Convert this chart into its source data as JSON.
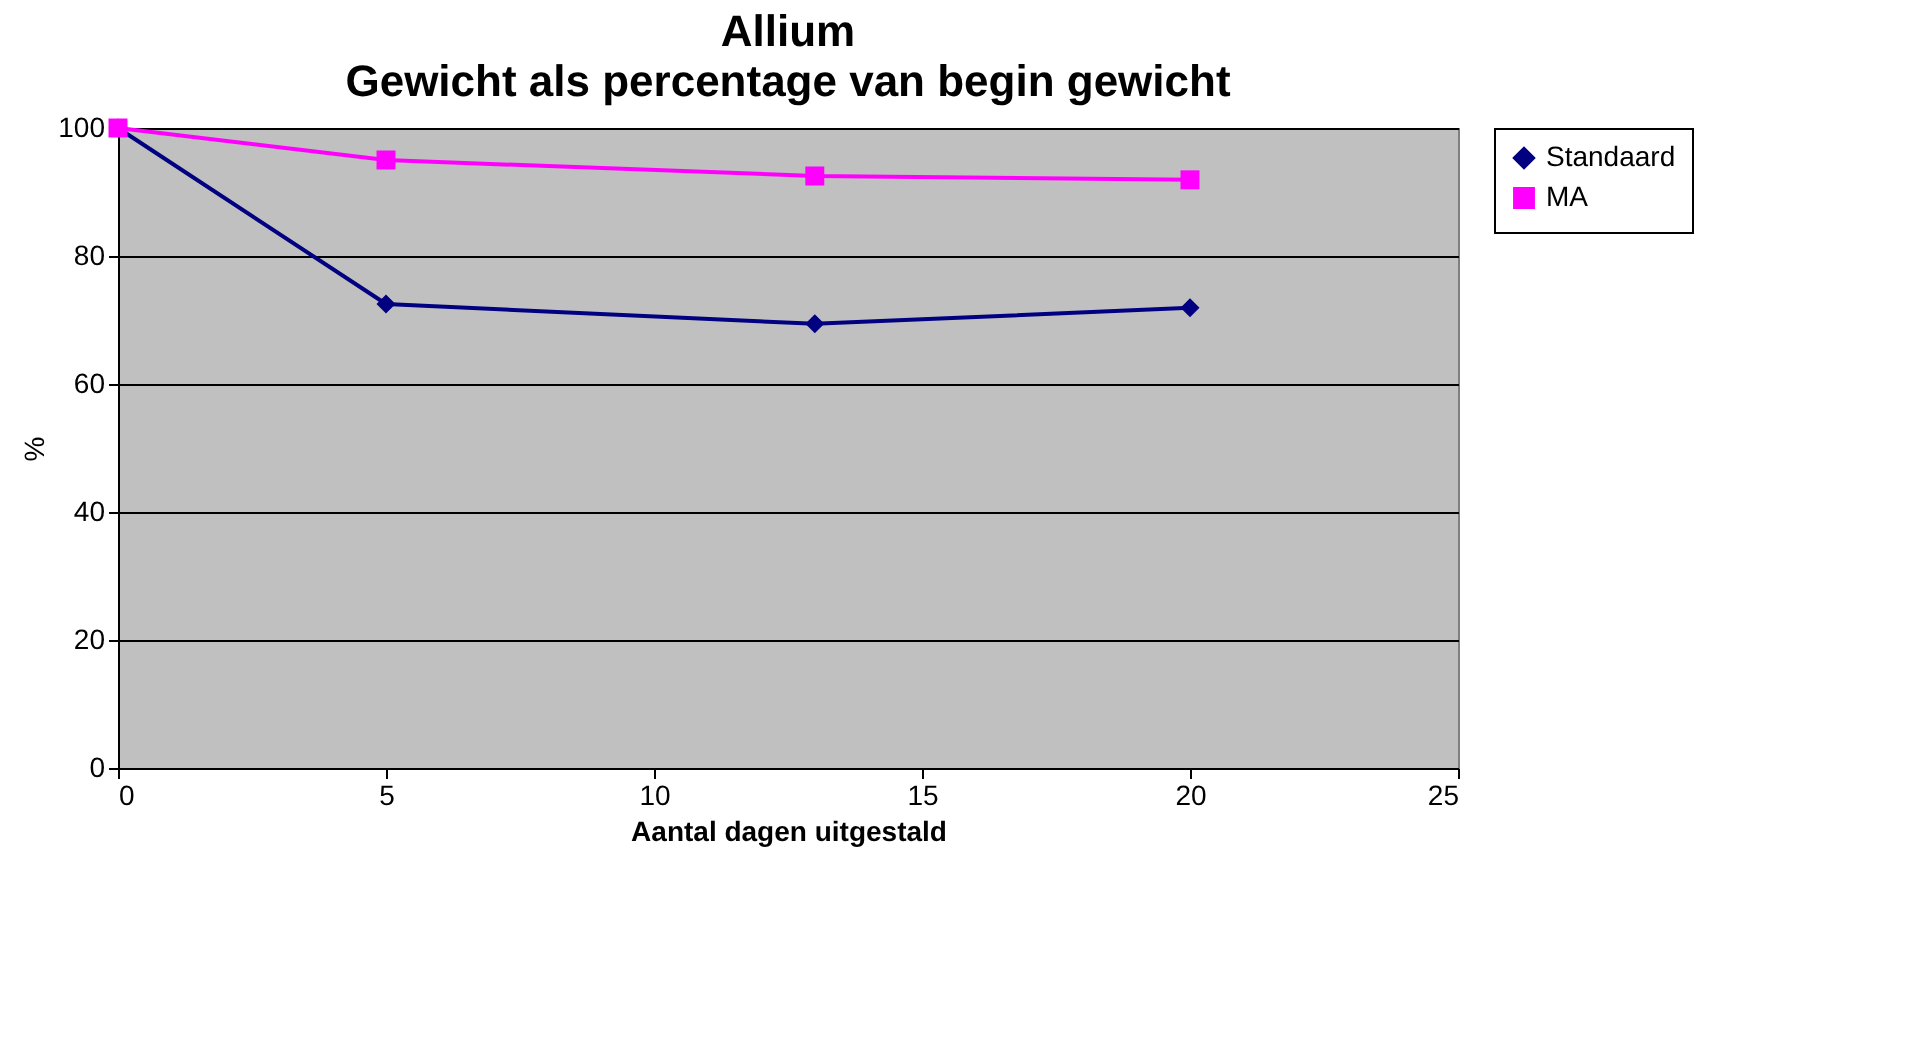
{
  "chart_data": {
    "type": "line",
    "title": "Allium",
    "subtitle": "Gewicht als percentage van begin gewicht",
    "xlabel": "Aantal dagen uitgestald",
    "ylabel": "%",
    "x": [
      0,
      5,
      13,
      20
    ],
    "series": [
      {
        "name": "Standaard",
        "color": "#000080",
        "values": [
          100,
          72.5,
          69.4,
          71.9
        ],
        "marker": "diamond"
      },
      {
        "name": "MA",
        "color": "#ff00ff",
        "values": [
          100,
          95,
          92.5,
          91.9
        ],
        "marker": "square"
      }
    ],
    "xlim": [
      0,
      25
    ],
    "xticks": [
      0,
      5,
      10,
      15,
      20,
      25
    ],
    "ylim": [
      0,
      100
    ],
    "yticks": [
      0,
      20,
      40,
      60,
      80,
      100
    ],
    "grid": "y",
    "legend": "right",
    "line_style": "solid"
  }
}
